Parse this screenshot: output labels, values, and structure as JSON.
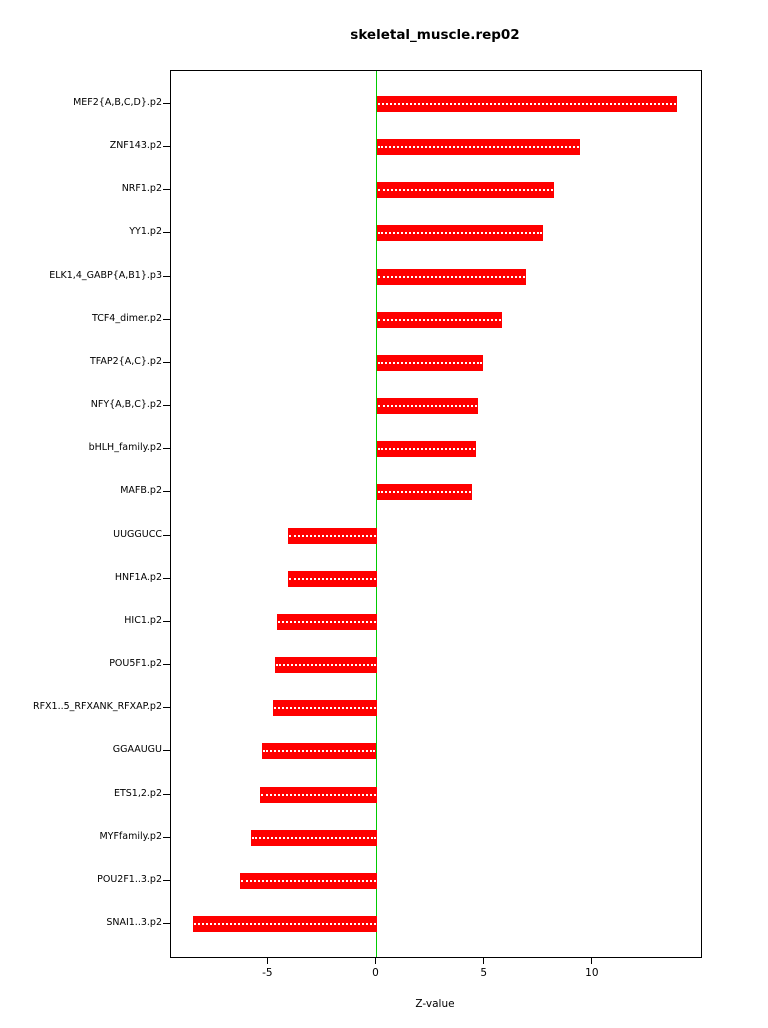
{
  "chart_data": {
    "type": "bar",
    "orientation": "horizontal",
    "title": "skeletal_muscle.rep02",
    "xlabel": "Z-value",
    "ylabel": "",
    "xlim": [
      -9.5,
      15
    ],
    "xticks": [
      -5,
      0,
      5,
      10
    ],
    "grid": false,
    "legend": "none",
    "bar_color": "#FF0000",
    "zero_line_color": "#00CC00",
    "categories": [
      "MEF2{A,B,C,D}.p2",
      "ZNF143.p2",
      "NRF1.p2",
      "YY1.p2",
      "ELK1,4_GABP{A,B1}.p3",
      "TCF4_dimer.p2",
      "TFAP2{A,C}.p2",
      "NFY{A,B,C}.p2",
      "bHLH_family.p2",
      "MAFB.p2",
      "UUGGUCC",
      "HNF1A.p2",
      "HIC1.p2",
      "POU5F1.p2",
      "RFX1..5_RFXANK_RFXAP.p2",
      "GGAAUGU",
      "ETS1,2.p2",
      "MYFfamily.p2",
      "POU2F1..3.p2",
      "SNAI1..3.p2"
    ],
    "values": [
      13.9,
      9.4,
      8.2,
      7.7,
      6.9,
      5.8,
      4.9,
      4.7,
      4.6,
      4.4,
      -4.1,
      -4.1,
      -4.6,
      -4.7,
      -4.8,
      -5.3,
      -5.4,
      -5.8,
      -6.3,
      -8.5
    ]
  }
}
